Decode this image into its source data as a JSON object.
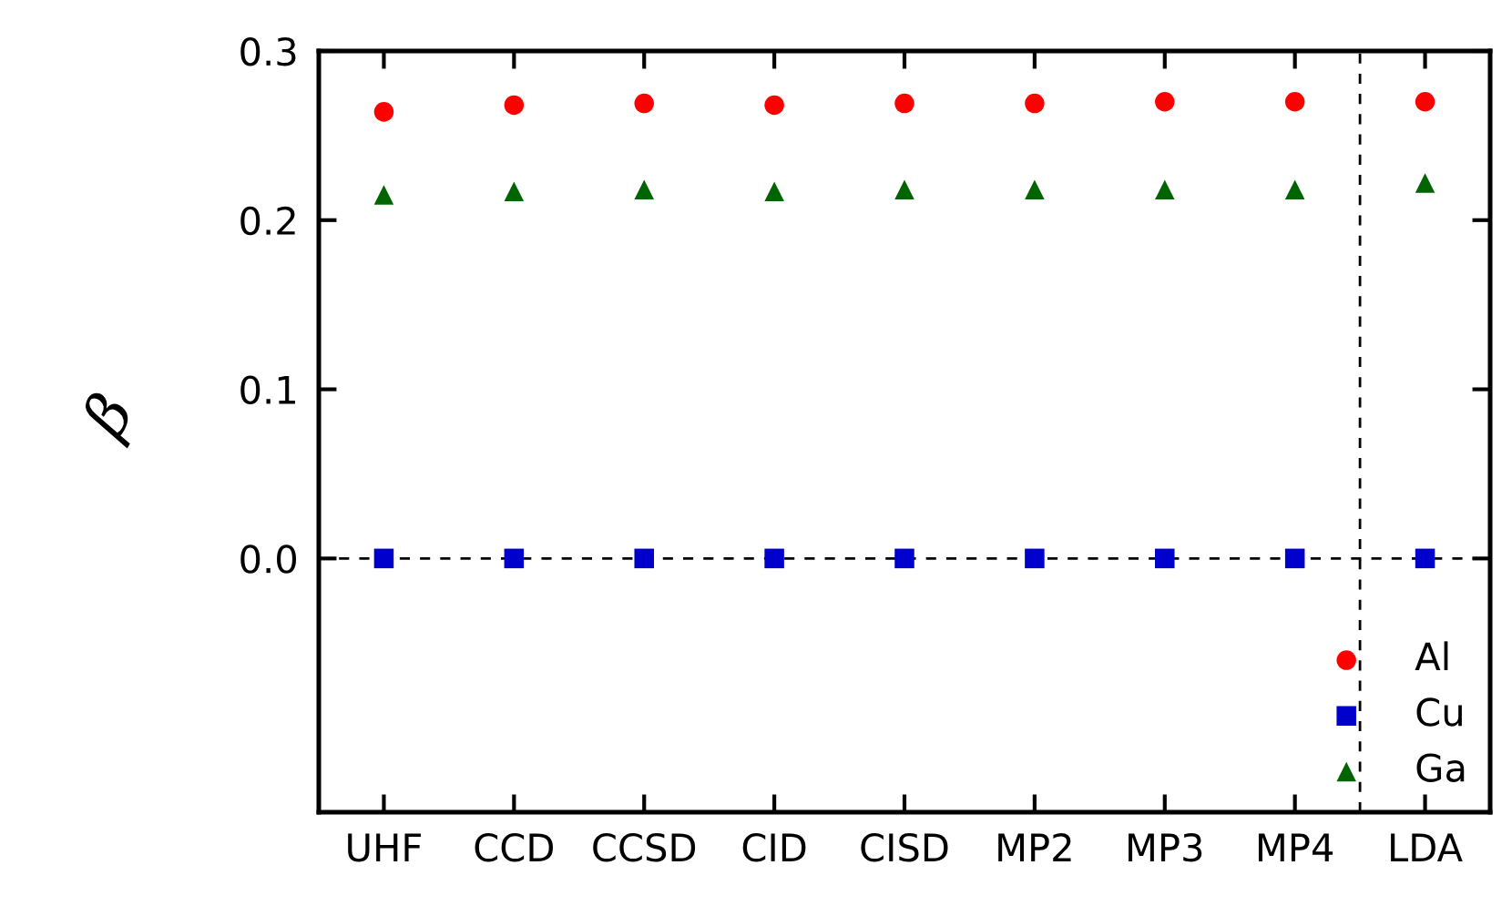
{
  "chart_data": {
    "type": "scatter",
    "ylabel": "β",
    "categories": [
      "UHF",
      "CCD",
      "CCSD",
      "CID",
      "CISD",
      "MP2",
      "MP3",
      "MP4",
      "LDA"
    ],
    "series": [
      {
        "name": "Al",
        "color": "#ff0000",
        "marker": "circle",
        "values": [
          0.264,
          0.268,
          0.269,
          0.268,
          0.269,
          0.269,
          0.27,
          0.27,
          0.27
        ]
      },
      {
        "name": "Cu",
        "color": "#0000cc",
        "marker": "square",
        "values": [
          0,
          0,
          0,
          0,
          0,
          0,
          0,
          0,
          0
        ]
      },
      {
        "name": "Ga",
        "color": "#006400",
        "marker": "triangle",
        "values": [
          0.215,
          0.217,
          0.218,
          0.217,
          0.218,
          0.218,
          0.218,
          0.218,
          0.222
        ]
      }
    ],
    "ylim": [
      -0.15,
      0.3
    ],
    "yticks": [
      {
        "value": 0,
        "label": "0.0"
      },
      0.1,
      0.2,
      0.3
    ],
    "grid": false,
    "legend": "bottom right",
    "ref_lines": [
      {
        "axis": "y",
        "value": 0,
        "color": "#000000",
        "line_style": "dashed"
      }
    ]
  }
}
